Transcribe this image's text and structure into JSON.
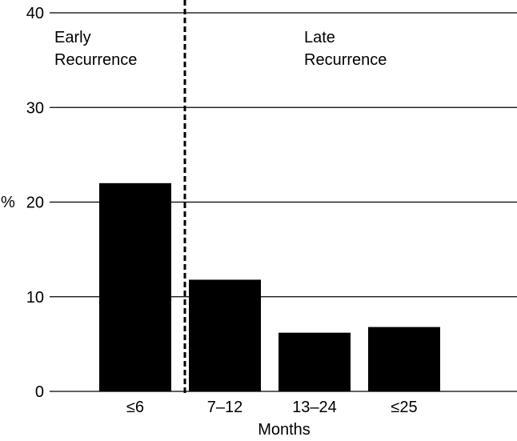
{
  "chart_data": {
    "type": "bar",
    "title": "",
    "xlabel": "Months",
    "ylabel": "%",
    "categories": [
      "≤6",
      "7–12",
      "13–24",
      "≤25"
    ],
    "values": [
      22,
      11.8,
      6.2,
      6.8
    ],
    "ylim": [
      0,
      40
    ],
    "yticks": [
      "0",
      "10",
      "20",
      "30",
      "40"
    ],
    "grid": true,
    "bar_color": "#000000",
    "annotations": [
      {
        "line1": "Early",
        "line2": "Recurrence"
      },
      {
        "line1": "Late",
        "line2": "Recurrence"
      }
    ]
  }
}
